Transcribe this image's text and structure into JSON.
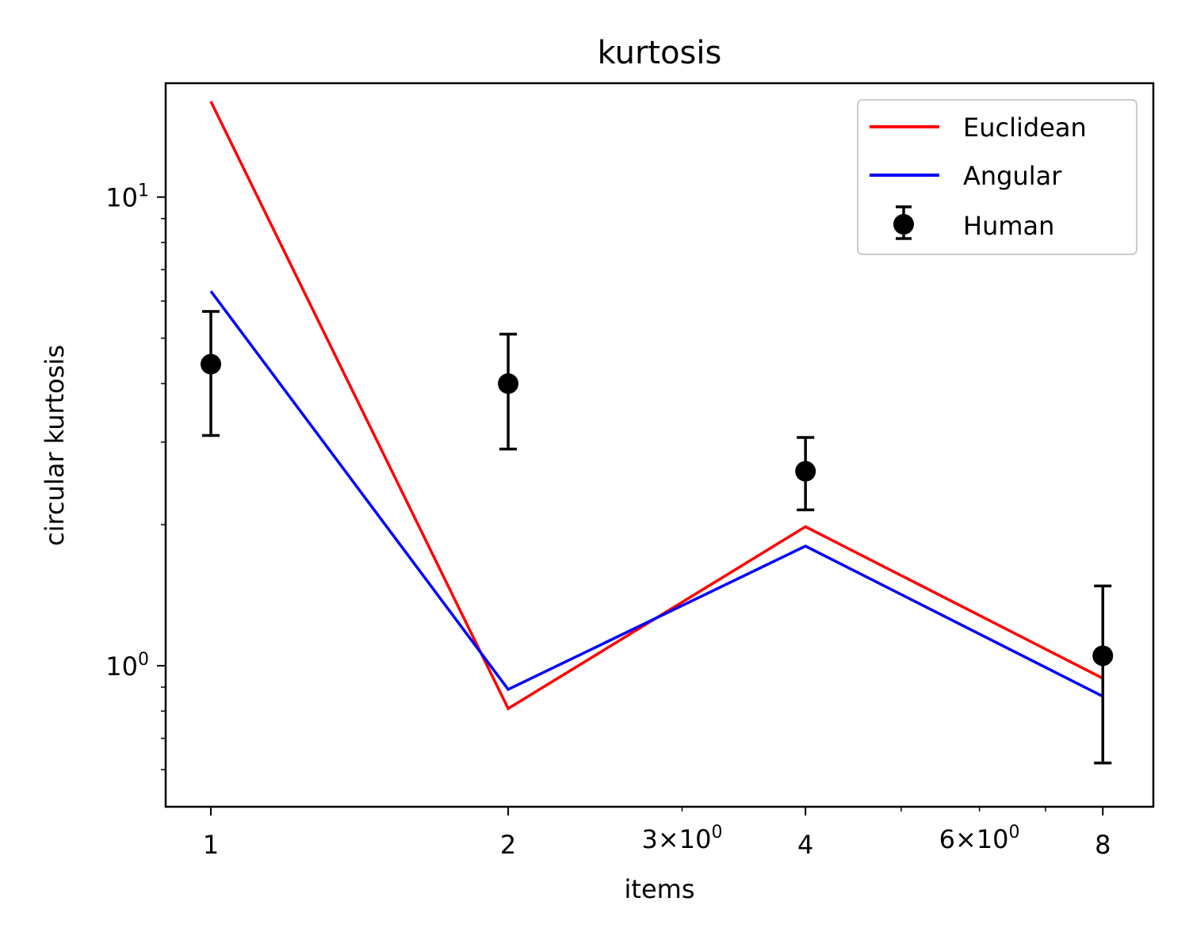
{
  "chart_data": {
    "type": "line",
    "title": "kurtosis",
    "xlabel": "items",
    "ylabel": "circular kurtosis",
    "x_scale": "log",
    "y_scale": "log",
    "xlim": [
      0.9,
      9.0
    ],
    "ylim": [
      0.5,
      17.5
    ],
    "x": [
      1,
      2,
      4,
      8
    ],
    "x_tick_labels": [
      {
        "value": 1,
        "label": "1"
      },
      {
        "value": 2,
        "label": "2"
      },
      {
        "value": 3,
        "label": "3×10",
        "exp": "0"
      },
      {
        "value": 4,
        "label": "4"
      },
      {
        "value": 6,
        "label": "6×10",
        "exp": "0"
      },
      {
        "value": 8,
        "label": "8"
      }
    ],
    "y_tick_labels": [
      {
        "value": 1,
        "label": "10",
        "exp": "0"
      },
      {
        "value": 10,
        "label": "10",
        "exp": "1"
      }
    ],
    "series": [
      {
        "name": "Euclidean",
        "kind": "line",
        "color": "#ff0000",
        "values": [
          16.0,
          0.81,
          1.98,
          0.94
        ]
      },
      {
        "name": "Angular",
        "kind": "line",
        "color": "#0000ff",
        "values": [
          6.3,
          0.89,
          1.8,
          0.86
        ]
      },
      {
        "name": "Human",
        "kind": "errorbar",
        "color": "#000000",
        "values": [
          4.4,
          4.0,
          2.6,
          1.05
        ],
        "lower": [
          3.1,
          2.9,
          2.15,
          0.62
        ],
        "upper": [
          5.7,
          5.1,
          3.07,
          1.48
        ]
      }
    ],
    "legend": {
      "position": "top-right",
      "items": [
        "Euclidean",
        "Angular",
        "Human"
      ]
    },
    "grid": false
  }
}
